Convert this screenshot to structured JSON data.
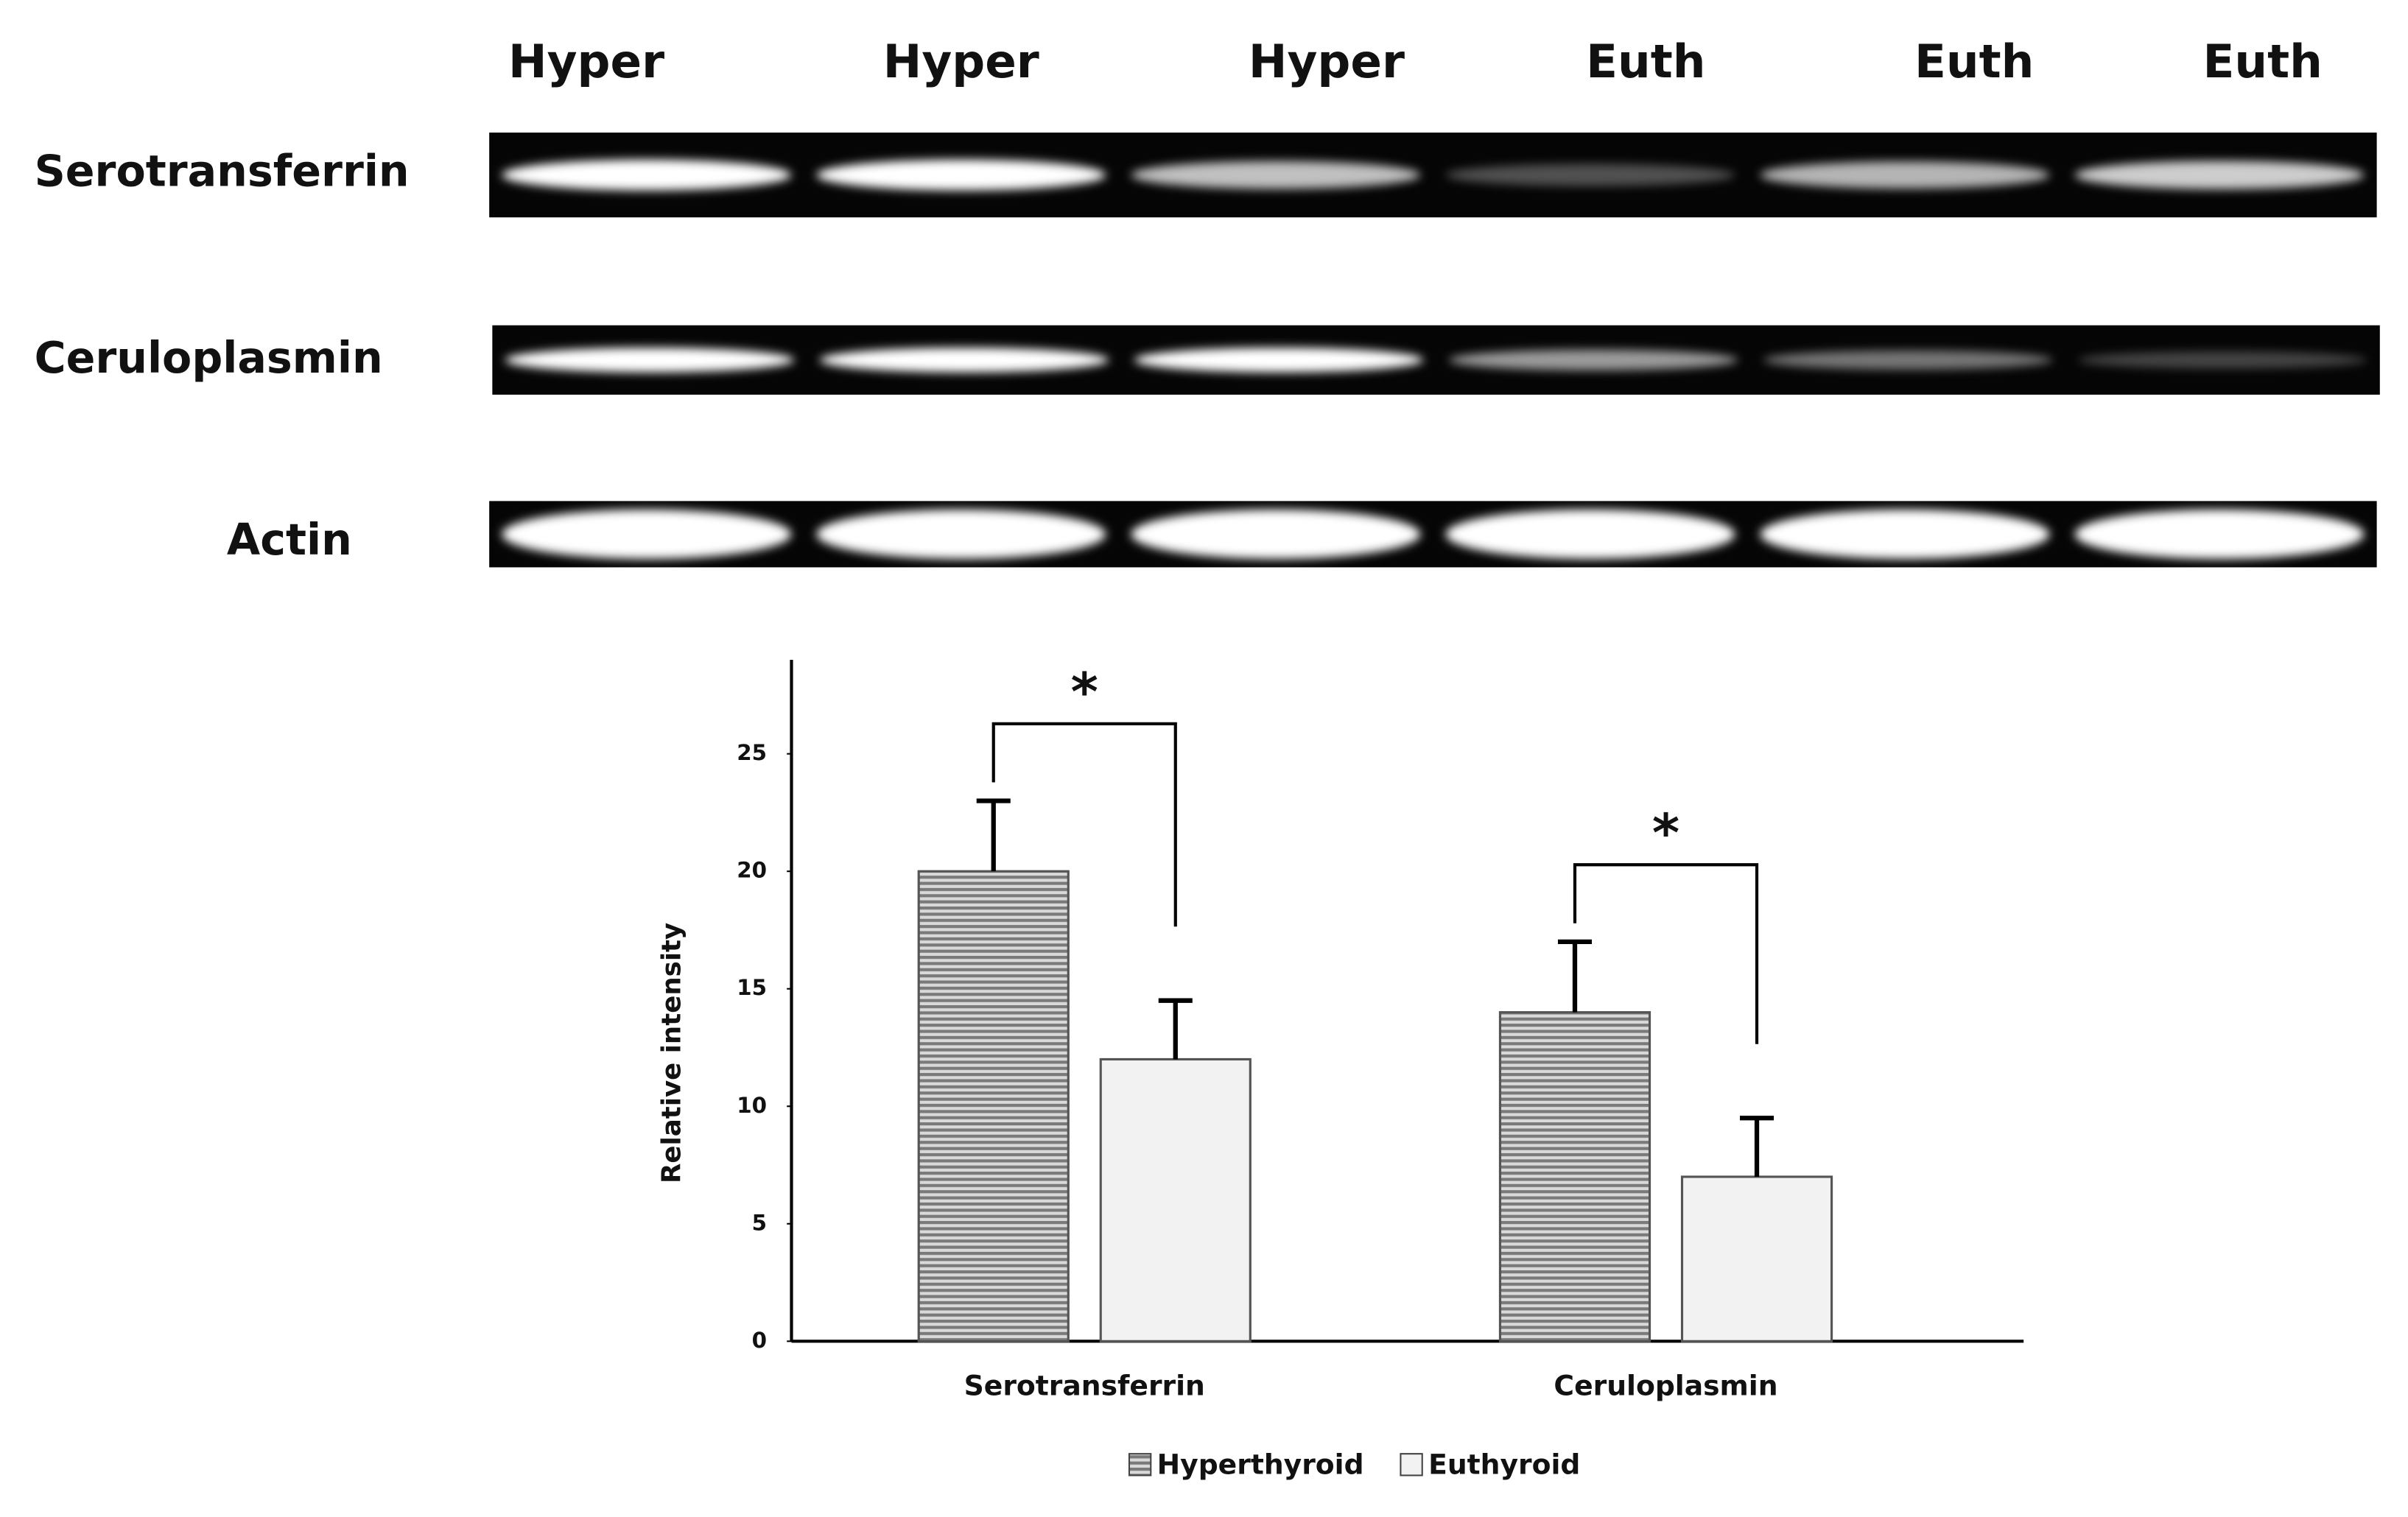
{
  "blot": {
    "lanes": [
      "Hyper",
      "Hyper",
      "Hyper",
      "Euth",
      "Euth",
      "Euth"
    ],
    "rows": [
      "Serotransferrin",
      "Ceruloplasmin",
      "Actin"
    ]
  },
  "chart_data": {
    "type": "bar",
    "y_label": "Relative intensity",
    "categories": [
      "Serotransferrin",
      "Ceruloplasmin"
    ],
    "series": [
      {
        "name": "Hyperthyroid",
        "color": "#8c8c8c",
        "values": [
          20,
          14
        ],
        "errors": [
          3,
          3
        ]
      },
      {
        "name": "Euthyroid",
        "color": "#f2f2f2",
        "values": [
          12,
          7
        ],
        "errors": [
          2.5,
          2.5
        ]
      }
    ],
    "significance": [
      "*",
      "*"
    ],
    "ylim": [
      0,
      29
    ],
    "yticks": [
      0,
      5,
      10,
      15,
      20,
      25
    ],
    "legend": "bottom"
  }
}
